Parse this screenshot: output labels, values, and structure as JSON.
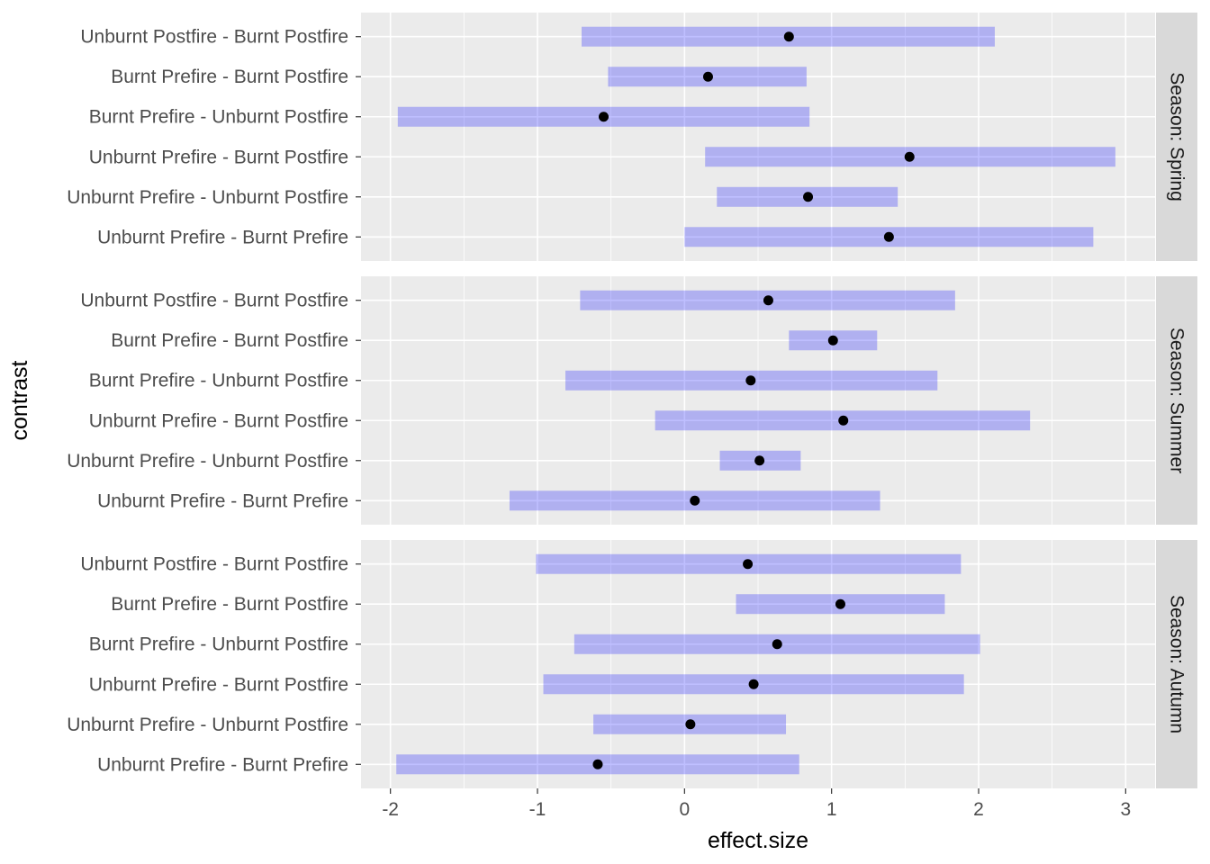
{
  "chart_data": {
    "type": "forest",
    "xlabel": "effect.size",
    "ylabel": "contrast",
    "xlim": [
      -2.2,
      3.2
    ],
    "x_ticks": [
      -2,
      -1,
      0,
      1,
      2,
      3
    ],
    "x_tick_labels": [
      "-2",
      "-1",
      "0",
      "1",
      "2",
      "3"
    ],
    "grid": true,
    "categories": [
      "Unburnt Postfire - Burnt Postfire",
      "Burnt Prefire - Burnt Postfire",
      "Burnt Prefire - Unburnt Postfire",
      "Unburnt Prefire - Burnt Postfire",
      "Unburnt Prefire - Unburnt Postfire",
      "Unburnt Prefire - Burnt Prefire"
    ],
    "facets": [
      {
        "label": "Season: Spring",
        "estimates": [
          0.71,
          0.16,
          -0.55,
          1.53,
          0.84,
          1.39
        ],
        "lower": [
          -0.7,
          -0.52,
          -1.95,
          0.14,
          0.22,
          0.0
        ],
        "upper": [
          2.11,
          0.83,
          0.85,
          2.93,
          1.45,
          2.78
        ]
      },
      {
        "label": "Season: Summer",
        "estimates": [
          0.57,
          1.01,
          0.45,
          1.08,
          0.51,
          0.07
        ],
        "lower": [
          -0.71,
          0.71,
          -0.81,
          -0.2,
          0.24,
          -1.19
        ],
        "upper": [
          1.84,
          1.31,
          1.72,
          2.35,
          0.79,
          1.33
        ]
      },
      {
        "label": "Season: Autumn",
        "estimates": [
          0.43,
          1.06,
          0.63,
          0.47,
          0.04,
          -0.59
        ],
        "lower": [
          -1.01,
          0.35,
          -0.75,
          -0.96,
          -0.62,
          -1.96
        ],
        "upper": [
          1.88,
          1.77,
          2.01,
          1.9,
          0.69,
          0.78
        ]
      }
    ]
  }
}
